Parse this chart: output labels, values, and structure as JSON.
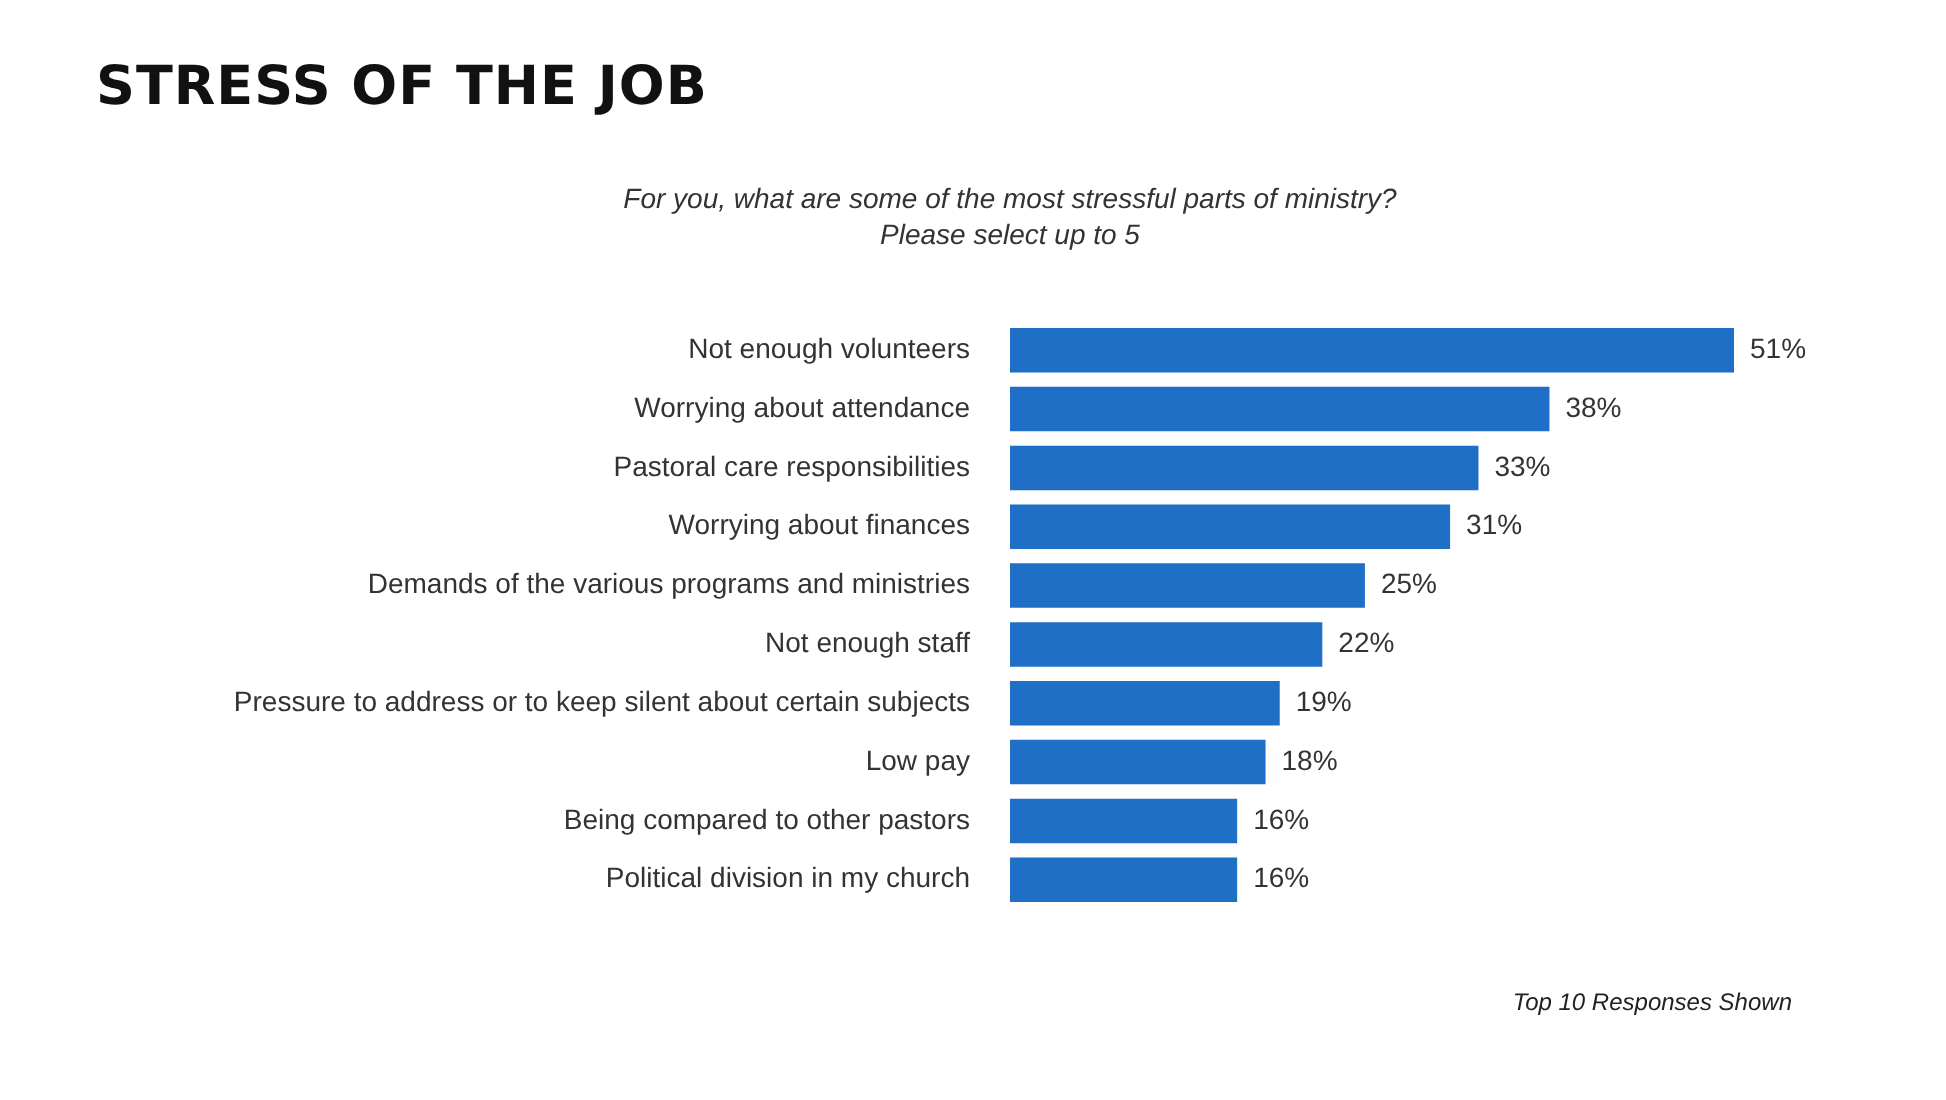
{
  "chart_data": {
    "type": "bar",
    "orientation": "horizontal",
    "title": "STRESS OF THE JOB",
    "subtitle": "For you, what are some of the most stressful parts of ministry?\nPlease select up to 5",
    "categories": [
      "Not enough volunteers",
      "Worrying about attendance",
      "Pastoral care responsibilities",
      "Worrying about finances",
      "Demands of the various programs and ministries",
      "Not enough staff",
      "Pressure to address or to keep silent about certain subjects",
      "Low pay",
      "Being compared to other pastors",
      "Political division in my church"
    ],
    "values": [
      51,
      38,
      33,
      31,
      25,
      22,
      19,
      18,
      16,
      16
    ],
    "value_labels": [
      "51%",
      "38%",
      "33%",
      "31%",
      "25%",
      "22%",
      "19%",
      "18%",
      "16%",
      "16%"
    ],
    "color": "#1f6fc7",
    "legend": false,
    "annotations": [
      "Top 10 Responses Shown"
    ]
  }
}
